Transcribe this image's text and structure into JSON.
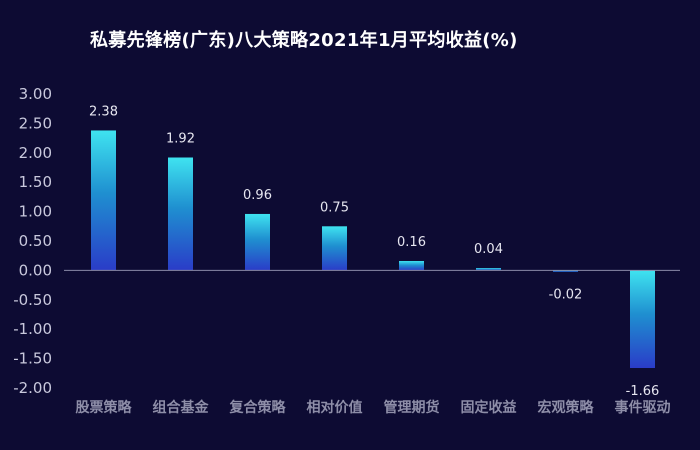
{
  "chart_data": {
    "type": "bar",
    "title": "私募先锋榜(广东)八大策略2021年1月平均收益(%)",
    "categories": [
      "股票策略",
      "组合基金",
      "复合策略",
      "相对价值",
      "管理期货",
      "固定收益",
      "宏观策略",
      "事件驱动"
    ],
    "values": [
      2.38,
      1.92,
      0.96,
      0.75,
      0.16,
      0.04,
      -0.02,
      -1.66
    ],
    "value_labels": [
      "2.38",
      "1.92",
      "0.96",
      "0.75",
      "0.16",
      "0.04",
      "-0.02",
      "-1.66"
    ],
    "ylim": [
      -2.0,
      3.0
    ],
    "yticks": [
      3.0,
      2.5,
      2.0,
      1.5,
      1.0,
      0.5,
      0.0,
      -0.5,
      -1.0,
      -1.5,
      -2.0
    ],
    "ytick_labels": [
      "3.00",
      "2.50",
      "2.00",
      "1.50",
      "1.00",
      "0.50",
      "0.00",
      "-0.50",
      "-1.00",
      "-1.50",
      "-2.00"
    ],
    "xlabel": "",
    "ylabel": "",
    "grid": false,
    "colors": {
      "background": "#0d0b33",
      "bar_top": "#3fe3f0",
      "bar_mid": "#1f8fd0",
      "bar_bottom": "#2a3cc8",
      "axis": "#8a8aa8"
    }
  }
}
